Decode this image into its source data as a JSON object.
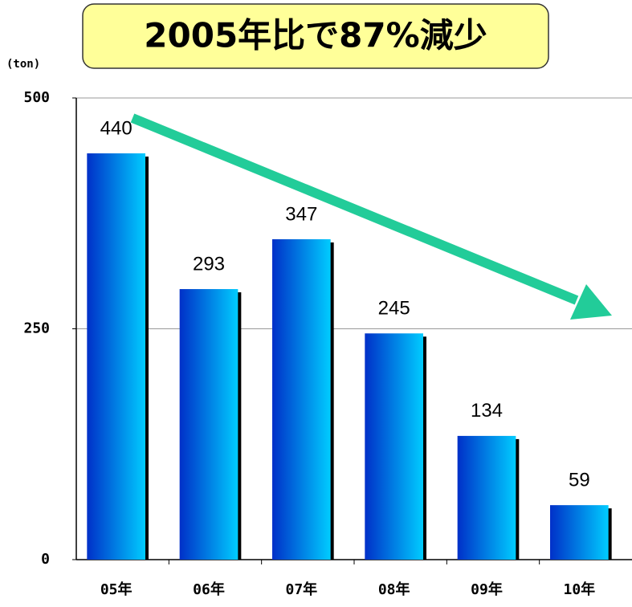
{
  "chart_data": {
    "type": "bar",
    "title": "2005年比で87%減少",
    "y_unit": "(ton)",
    "categories": [
      "05年",
      "06年",
      "07年",
      "08年",
      "09年",
      "10年"
    ],
    "values": [
      440,
      293,
      347,
      245,
      134,
      59
    ],
    "ylim": [
      0,
      500
    ],
    "yticks": [
      0,
      250,
      500
    ],
    "grid": true,
    "color": [
      "#0030c8",
      "#00ccff"
    ]
  }
}
